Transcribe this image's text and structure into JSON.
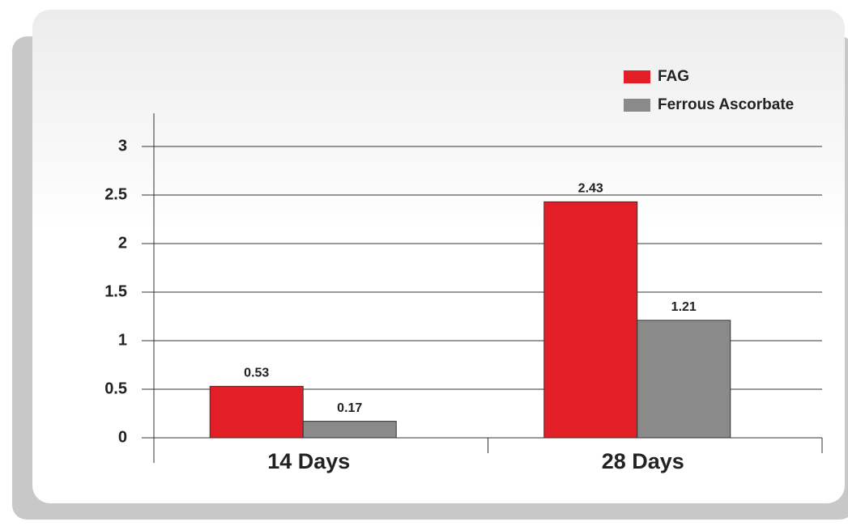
{
  "chart_data": {
    "type": "bar",
    "categories": [
      "14 Days",
      "28 Days"
    ],
    "series": [
      {
        "name": "FAG",
        "color": "#e21f26",
        "values": [
          0.53,
          2.43
        ]
      },
      {
        "name": "Ferrous Ascorbate",
        "color": "#8a8a8a",
        "values": [
          0.17,
          1.21
        ]
      }
    ],
    "ylim": [
      0,
      3
    ],
    "yticks": [
      0,
      0.5,
      1,
      1.5,
      2,
      2.5,
      3
    ],
    "grid": true,
    "legend": "top-right"
  }
}
